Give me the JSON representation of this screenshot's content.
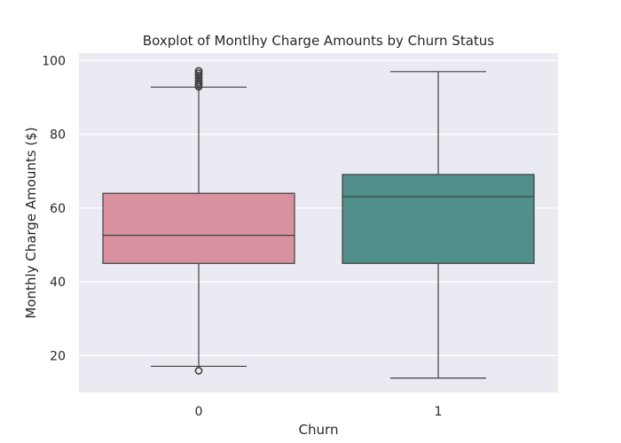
{
  "chart_data": {
    "type": "boxplot",
    "title": "Boxplot of Montlhy Charge Amounts by Churn Status",
    "xlabel": "Churn",
    "ylabel": "Monthly Charge Amounts ($)",
    "categories": [
      "0",
      "1"
    ],
    "ylim": [
      10,
      102
    ],
    "yticks": [
      20,
      40,
      60,
      80,
      100
    ],
    "grid": true,
    "background": "#eaeaf2",
    "grid_color": "#ffffff",
    "boxes": [
      {
        "category": "0",
        "color": "#d8919f",
        "whisker_low": 17.1,
        "q1": 45.0,
        "median": 52.6,
        "q3": 64.0,
        "whisker_high": 92.8,
        "outliers": [
          15.9,
          92.9,
          93.4,
          94.0,
          94.6,
          95.3,
          96.0,
          96.6,
          97.2
        ]
      },
      {
        "category": "1",
        "color": "#508f8a",
        "whisker_low": 13.9,
        "q1": 45.0,
        "median": 63.1,
        "q3": 69.1,
        "whisker_high": 97.0,
        "outliers": []
      }
    ]
  }
}
